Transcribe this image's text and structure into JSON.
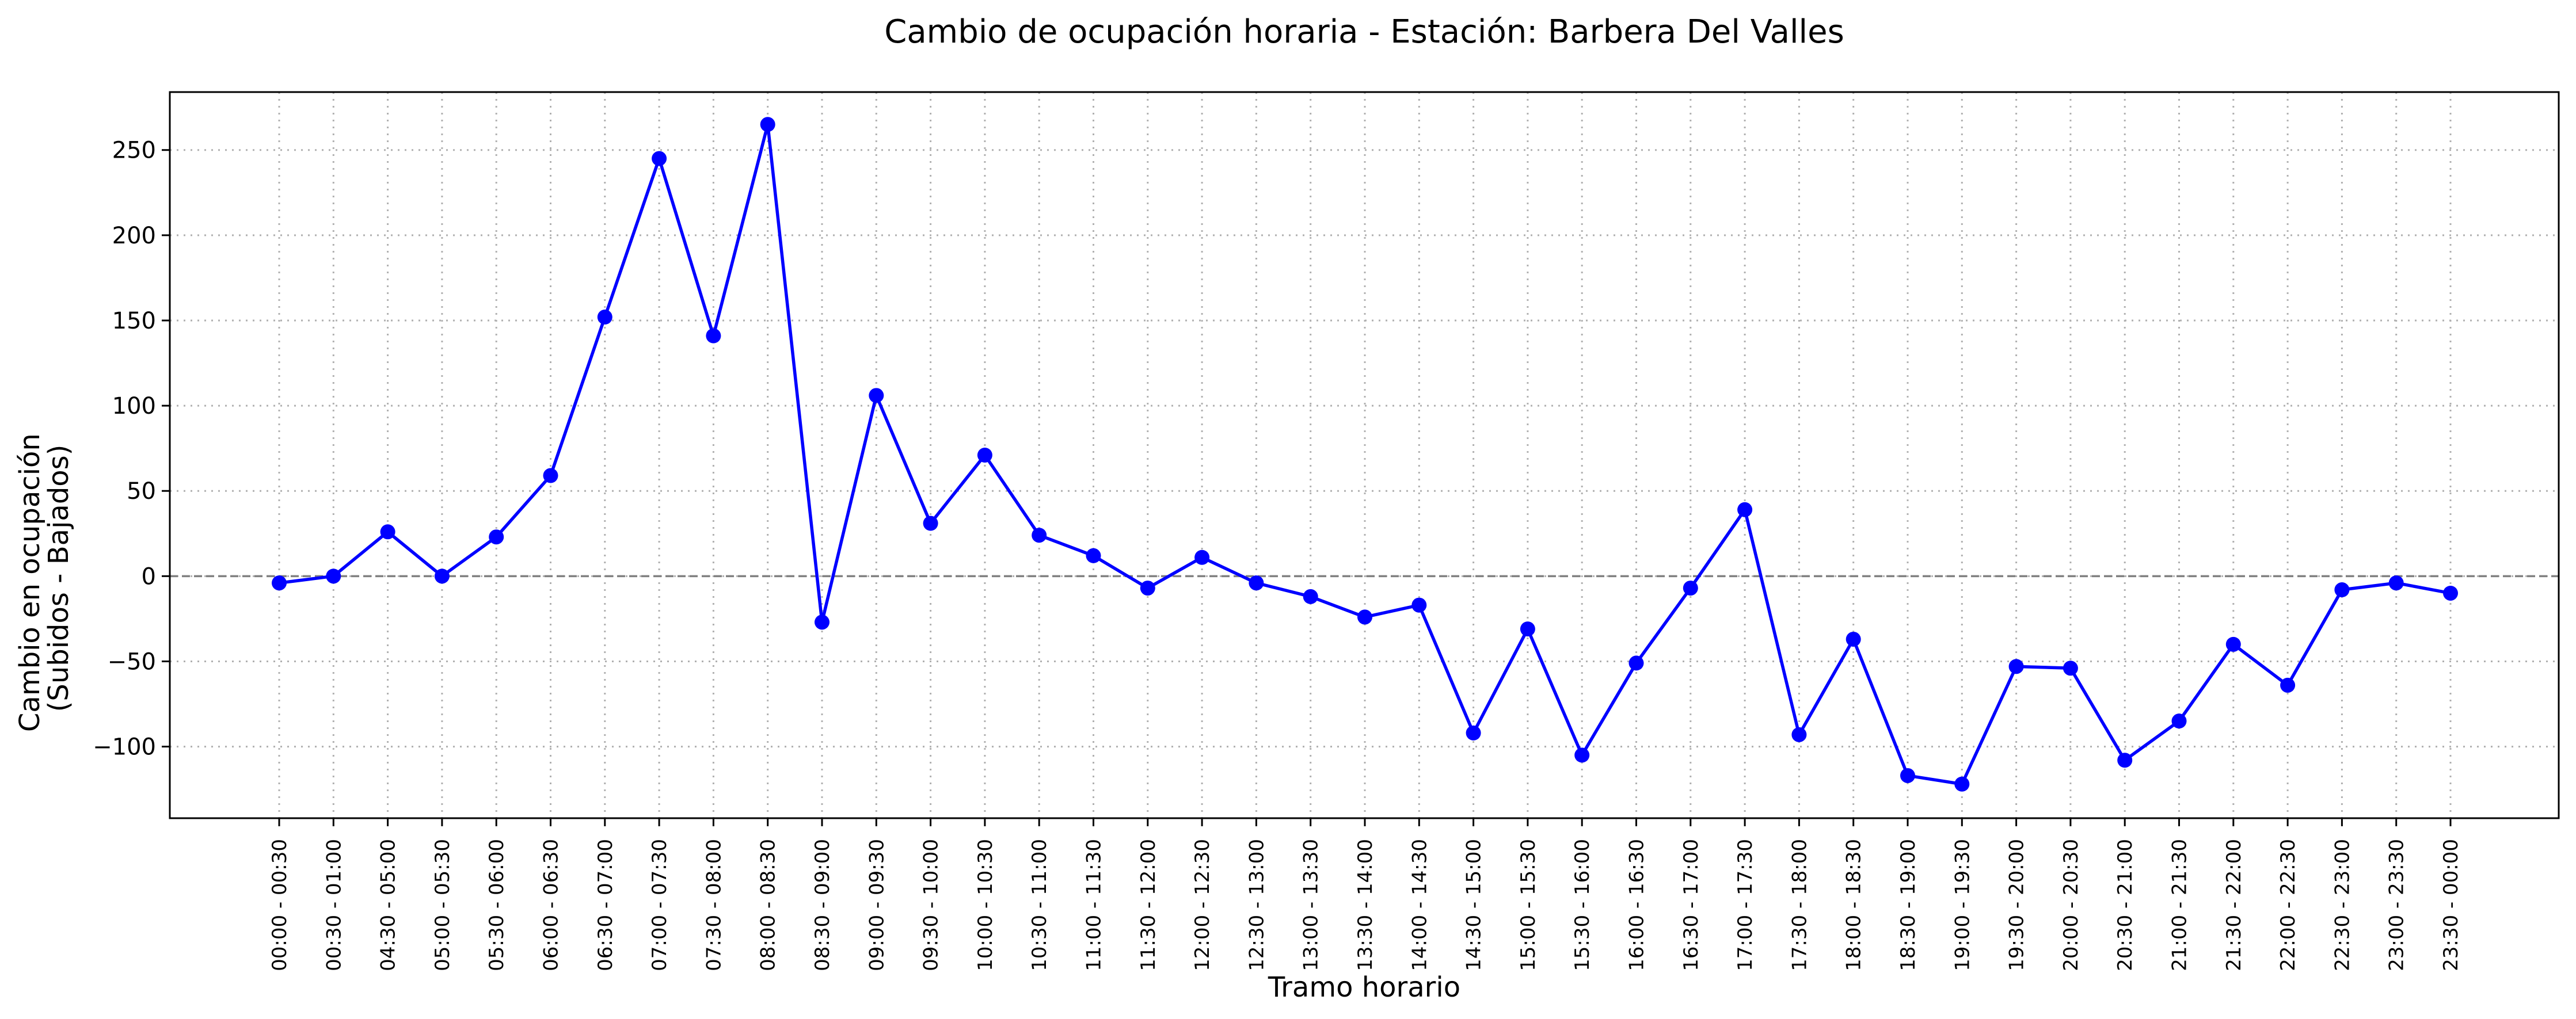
{
  "chart_data": {
    "type": "line",
    "title": "Cambio de ocupación horaria - Estación: Barbera Del Valles",
    "xlabel": "Tramo horario",
    "ylabel_lines": [
      "Cambio en ocupación",
      "(Subidos - Bajados)"
    ],
    "ylim": [
      -142,
      284
    ],
    "yticks": [
      -100,
      -50,
      0,
      50,
      100,
      150,
      200,
      250
    ],
    "ytick_labels": [
      "−100",
      "−50",
      "0",
      "50",
      "100",
      "150",
      "200",
      "250"
    ],
    "grid": true,
    "zero_reference_line": 0,
    "categories": [
      "00:00 - 00:30",
      "00:30 - 01:00",
      "04:30 - 05:00",
      "05:00 - 05:30",
      "05:30 - 06:00",
      "06:00 - 06:30",
      "06:30 - 07:00",
      "07:00 - 07:30",
      "07:30 - 08:00",
      "08:00 - 08:30",
      "08:30 - 09:00",
      "09:00 - 09:30",
      "09:30 - 10:00",
      "10:00 - 10:30",
      "10:30 - 11:00",
      "11:00 - 11:30",
      "11:30 - 12:00",
      "12:00 - 12:30",
      "12:30 - 13:00",
      "13:00 - 13:30",
      "13:30 - 14:00",
      "14:00 - 14:30",
      "14:30 - 15:00",
      "15:00 - 15:30",
      "15:30 - 16:00",
      "16:00 - 16:30",
      "16:30 - 17:00",
      "17:00 - 17:30",
      "17:30 - 18:00",
      "18:00 - 18:30",
      "18:30 - 19:00",
      "19:00 - 19:30",
      "19:30 - 20:00",
      "20:00 - 20:30",
      "20:30 - 21:00",
      "21:00 - 21:30",
      "21:30 - 22:00",
      "22:00 - 22:30",
      "22:30 - 23:00",
      "23:00 - 23:30",
      "23:30 - 00:00"
    ],
    "series": [
      {
        "color": "#0000ff",
        "marker": "circle",
        "values": [
          -4,
          0,
          26,
          0,
          23,
          59,
          152,
          245,
          141,
          265,
          -27,
          106,
          31,
          71,
          24,
          12,
          -7,
          11,
          -4,
          -12,
          -24,
          -17,
          -92,
          -31,
          -105,
          -51,
          -7,
          39,
          -93,
          -37,
          -117,
          -122,
          -53,
          -54,
          -108,
          -85,
          -40,
          -64,
          -8,
          -4,
          -10
        ]
      }
    ]
  }
}
